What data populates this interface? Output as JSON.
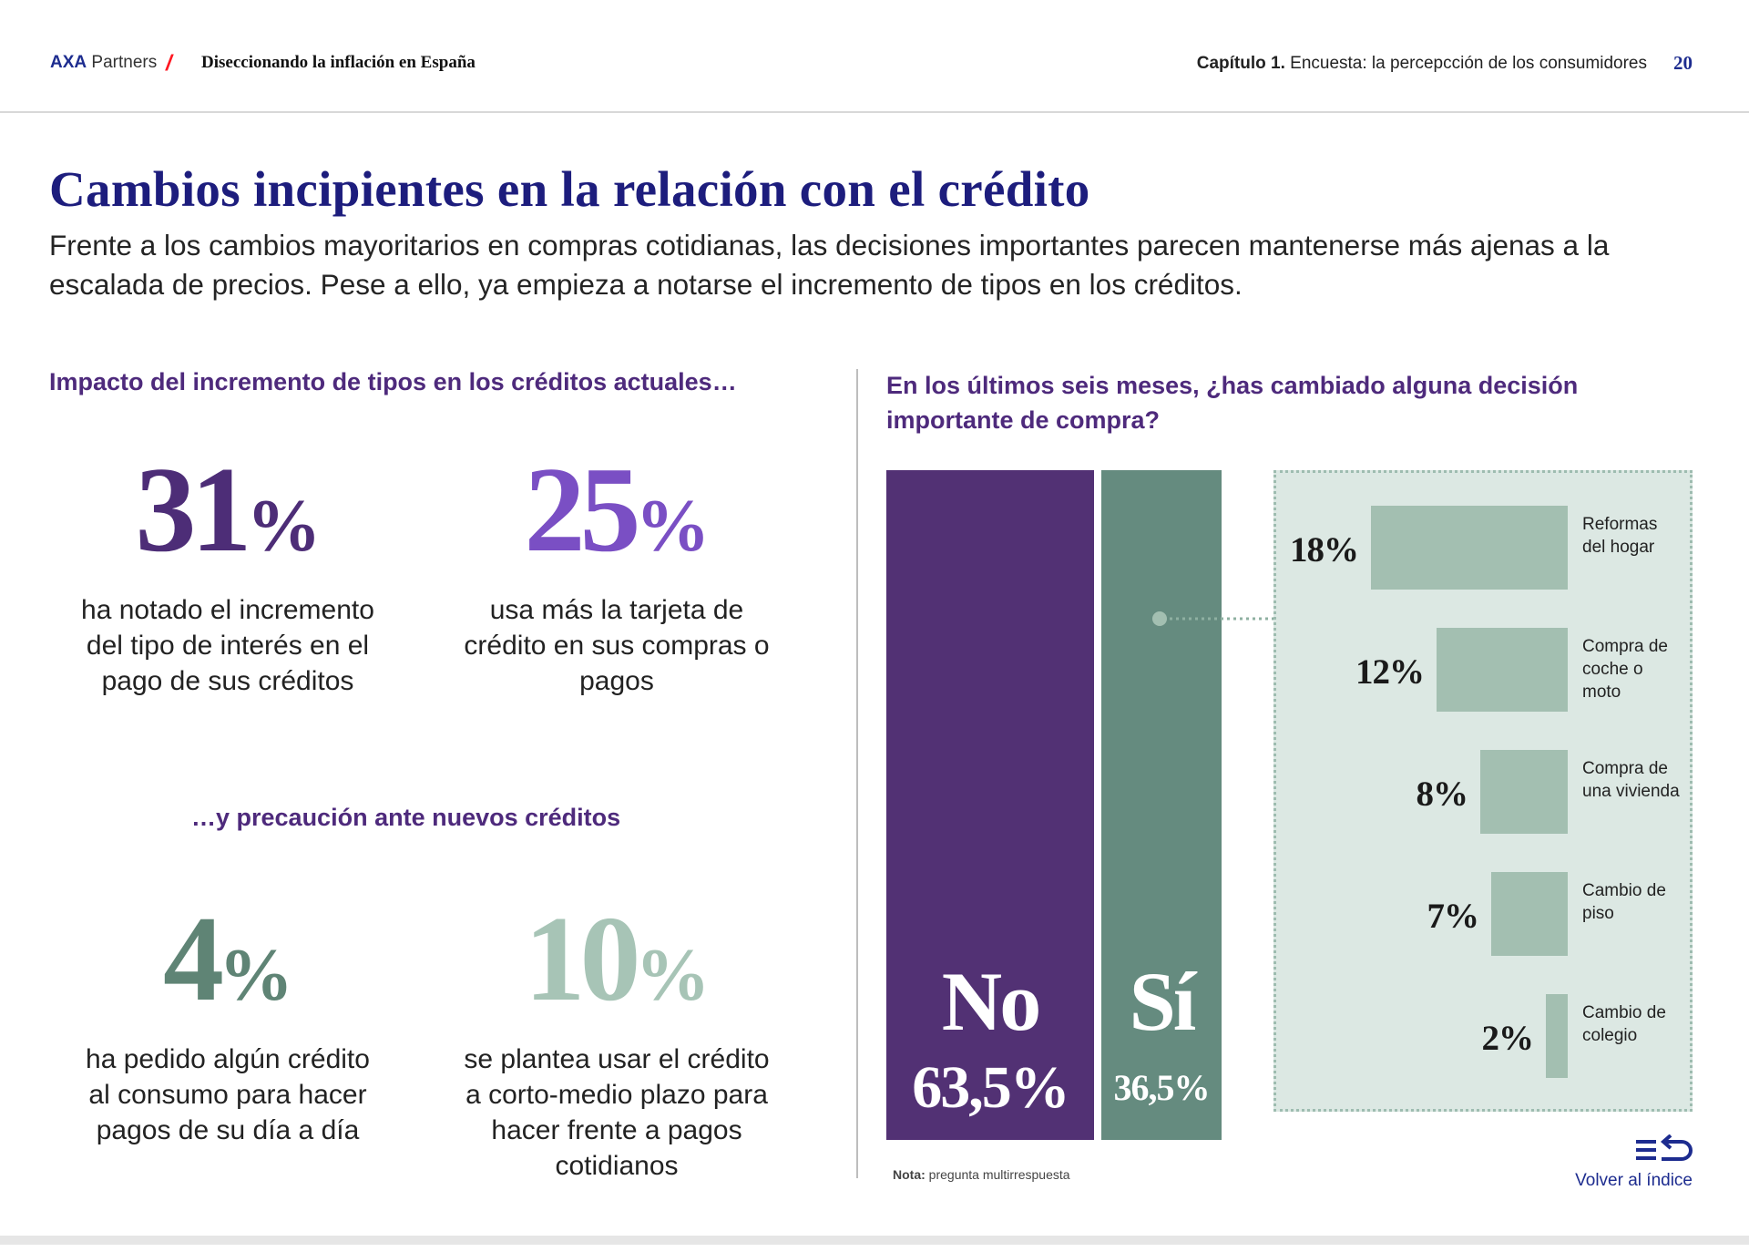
{
  "header": {
    "brand_bold": "AXA",
    "brand_light": "Partners",
    "slash": "/",
    "doc_title": "Diseccionando la inflación en España",
    "chapter_bold": "Capítulo 1.",
    "chapter_rest": "Encuesta: la percepcción de los consumidores",
    "page_number": "20"
  },
  "title": "Cambios incipientes en la relación con el crédito",
  "subtitle": "Frente a los cambios mayoritarios en compras cotidianas, las decisiones importantes parecen mantenerse más ajenas a la escalada de precios. Pese a ello, ya empieza a notarse el incremento de tipos en los créditos.",
  "left": {
    "heading": "Impacto del incremento de tipos en los créditos actuales…",
    "heading2": "…y precaución ante nuevos créditos",
    "stats": [
      {
        "number": "31",
        "unit": "%",
        "color": "#4d2d77",
        "desc": "ha notado el incremento del tipo de interés en el pago de sus créditos"
      },
      {
        "number": "25",
        "unit": "%",
        "color": "#7a4fc4",
        "desc": "usa más la tarjeta de crédito en sus compras o pagos"
      },
      {
        "number": "4",
        "unit": "%",
        "color": "#5f8475",
        "desc": "ha pedido algún crédito al consumo para hacer pagos de su día a día"
      },
      {
        "number": "10",
        "unit": "%",
        "color": "#a7c4b6",
        "desc": "se plantea usar el crédito a corto-medio plazo para hacer frente a pagos cotidianos"
      }
    ]
  },
  "right": {
    "heading": "En los últimos seis meses, ¿has cambiado alguna decisión importante de compra?",
    "note_bold": "Nota:",
    "note_rest": "pregunta multirrespuesta"
  },
  "chart_data": [
    {
      "type": "bar",
      "categories": [
        "No",
        "Sí"
      ],
      "values": [
        63.5,
        36.5
      ],
      "value_labels": [
        "63,5%",
        "36,5%"
      ],
      "colors": [
        "#523174",
        "#658b7f"
      ]
    },
    {
      "type": "bar",
      "orientation": "horizontal",
      "categories": [
        "Reformas del hogar",
        "Compra de coche o moto",
        "Compra de una vivienda",
        "Cambio de piso",
        "Cambio de colegio"
      ],
      "values": [
        18,
        12,
        8,
        7,
        2
      ],
      "value_labels": [
        "18%",
        "12%",
        "8%",
        "7%",
        "2%"
      ],
      "color": "#a3bfb1",
      "background": "#dce8e3"
    }
  ],
  "back_link": {
    "label": "Volver al índice",
    "icon": "back-to-index-icon"
  }
}
